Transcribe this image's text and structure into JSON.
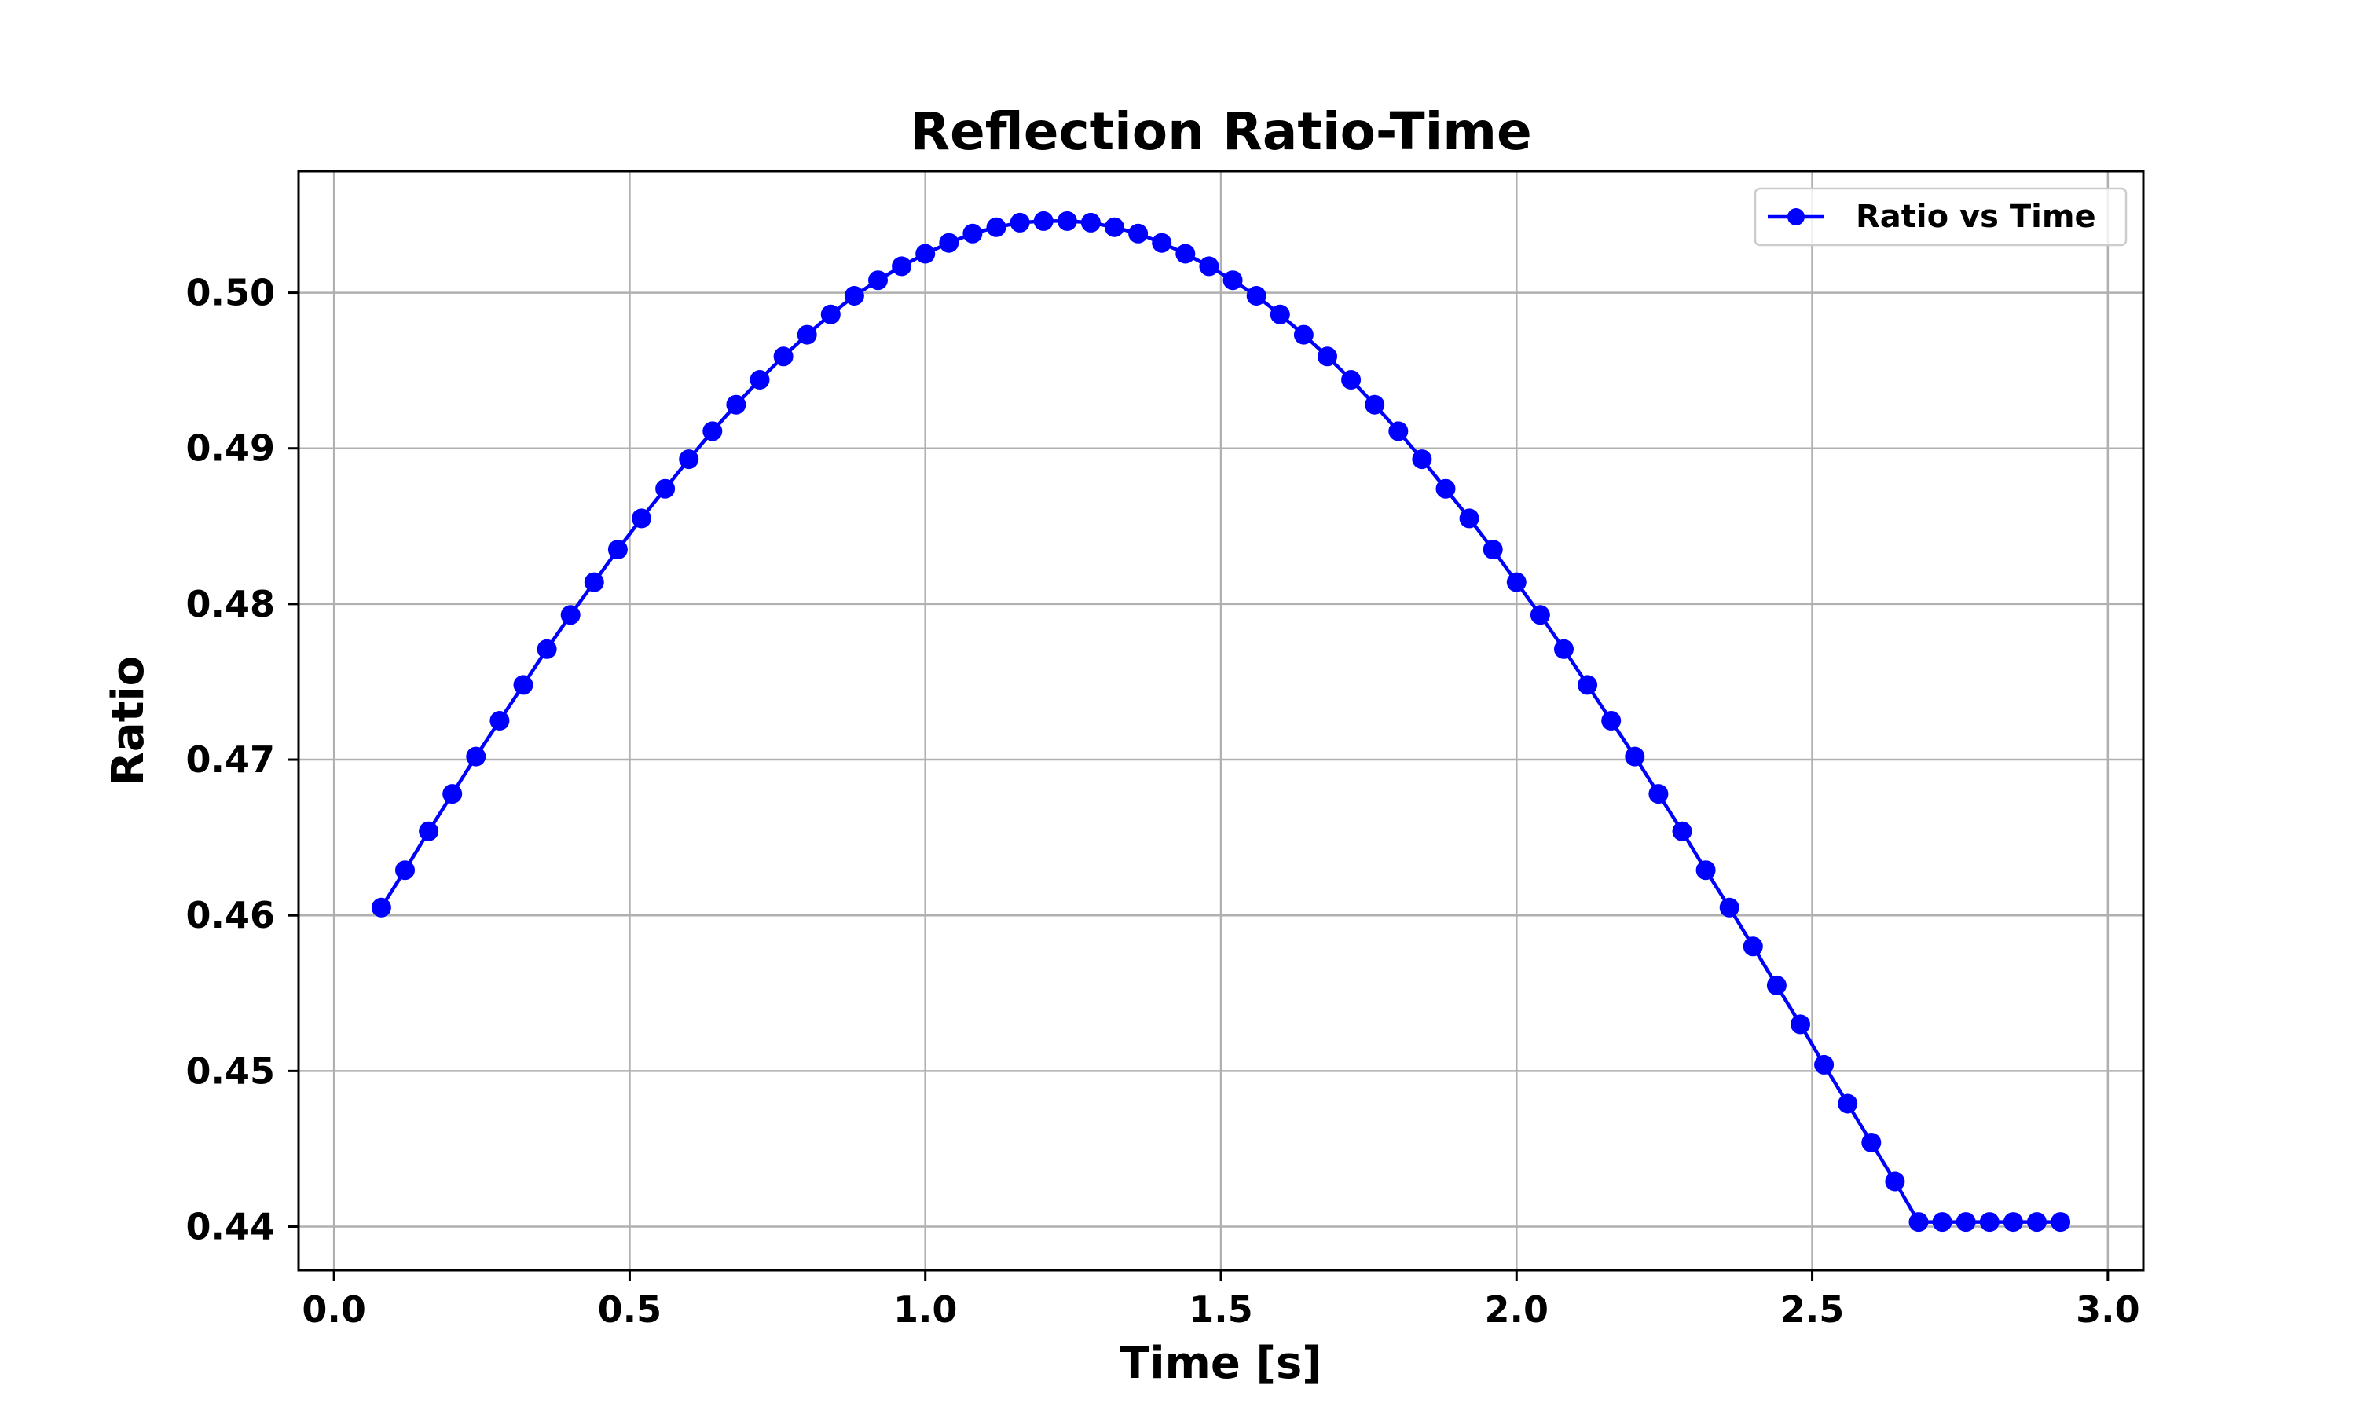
{
  "chart_data": {
    "type": "line",
    "title": "Reflection Ratio-Time",
    "xlabel": "Time [s]",
    "ylabel": "Ratio",
    "xlim": [
      -0.06,
      3.06
    ],
    "ylim": [
      0.4372,
      0.5078
    ],
    "xticks": [
      0.0,
      0.5,
      1.0,
      1.5,
      2.0,
      2.5,
      3.0
    ],
    "xtick_labels": [
      "0.0",
      "0.5",
      "1.0",
      "1.5",
      "2.0",
      "2.5",
      "3.0"
    ],
    "yticks": [
      0.44,
      0.45,
      0.46,
      0.47,
      0.48,
      0.49,
      0.5
    ],
    "ytick_labels": [
      "0.44",
      "0.45",
      "0.46",
      "0.47",
      "0.48",
      "0.49",
      "0.50"
    ],
    "grid": true,
    "legend_position": "top-right",
    "series": [
      {
        "name": "Ratio vs Time",
        "color": "#0000ff",
        "marker": "circle",
        "x": [
          0.08,
          0.12,
          0.16,
          0.2,
          0.24,
          0.28,
          0.32,
          0.36,
          0.4,
          0.44,
          0.48,
          0.52,
          0.56,
          0.6,
          0.64,
          0.68,
          0.72,
          0.76,
          0.8,
          0.84,
          0.88,
          0.92,
          0.96,
          1.0,
          1.04,
          1.08,
          1.12,
          1.16,
          1.2,
          1.24,
          1.28,
          1.32,
          1.36,
          1.4,
          1.44,
          1.48,
          1.52,
          1.56,
          1.6,
          1.64,
          1.68,
          1.72,
          1.76,
          1.8,
          1.84,
          1.88,
          1.92,
          1.96,
          2.0,
          2.04,
          2.08,
          2.12,
          2.16,
          2.2,
          2.24,
          2.28,
          2.32,
          2.36,
          2.4,
          2.44,
          2.48,
          2.52,
          2.56,
          2.6,
          2.64,
          2.68,
          2.72,
          2.76,
          2.8,
          2.84,
          2.88,
          2.92
        ],
        "y": [
          0.4605,
          0.4629,
          0.4654,
          0.4678,
          0.4702,
          0.4725,
          0.4748,
          0.4771,
          0.4793,
          0.4814,
          0.4835,
          0.4855,
          0.4874,
          0.4893,
          0.4911,
          0.4928,
          0.4944,
          0.4959,
          0.4973,
          0.4986,
          0.4998,
          0.5008,
          0.5017,
          0.5025,
          0.5032,
          0.5038,
          0.5042,
          0.5045,
          0.5046,
          0.5046,
          0.5045,
          0.5042,
          0.5038,
          0.5032,
          0.5025,
          0.5017,
          0.5008,
          0.4998,
          0.4986,
          0.4973,
          0.4959,
          0.4944,
          0.4928,
          0.4911,
          0.4893,
          0.4874,
          0.4855,
          0.4835,
          0.4814,
          0.4793,
          0.4771,
          0.4748,
          0.4725,
          0.4702,
          0.4678,
          0.4654,
          0.4629,
          0.4605,
          0.458,
          0.4555,
          0.453,
          0.4504,
          0.4479,
          0.4454,
          0.4429,
          0.4403,
          0.4403,
          0.4403,
          0.4403,
          0.4403,
          0.4403,
          0.4403
        ]
      }
    ]
  }
}
